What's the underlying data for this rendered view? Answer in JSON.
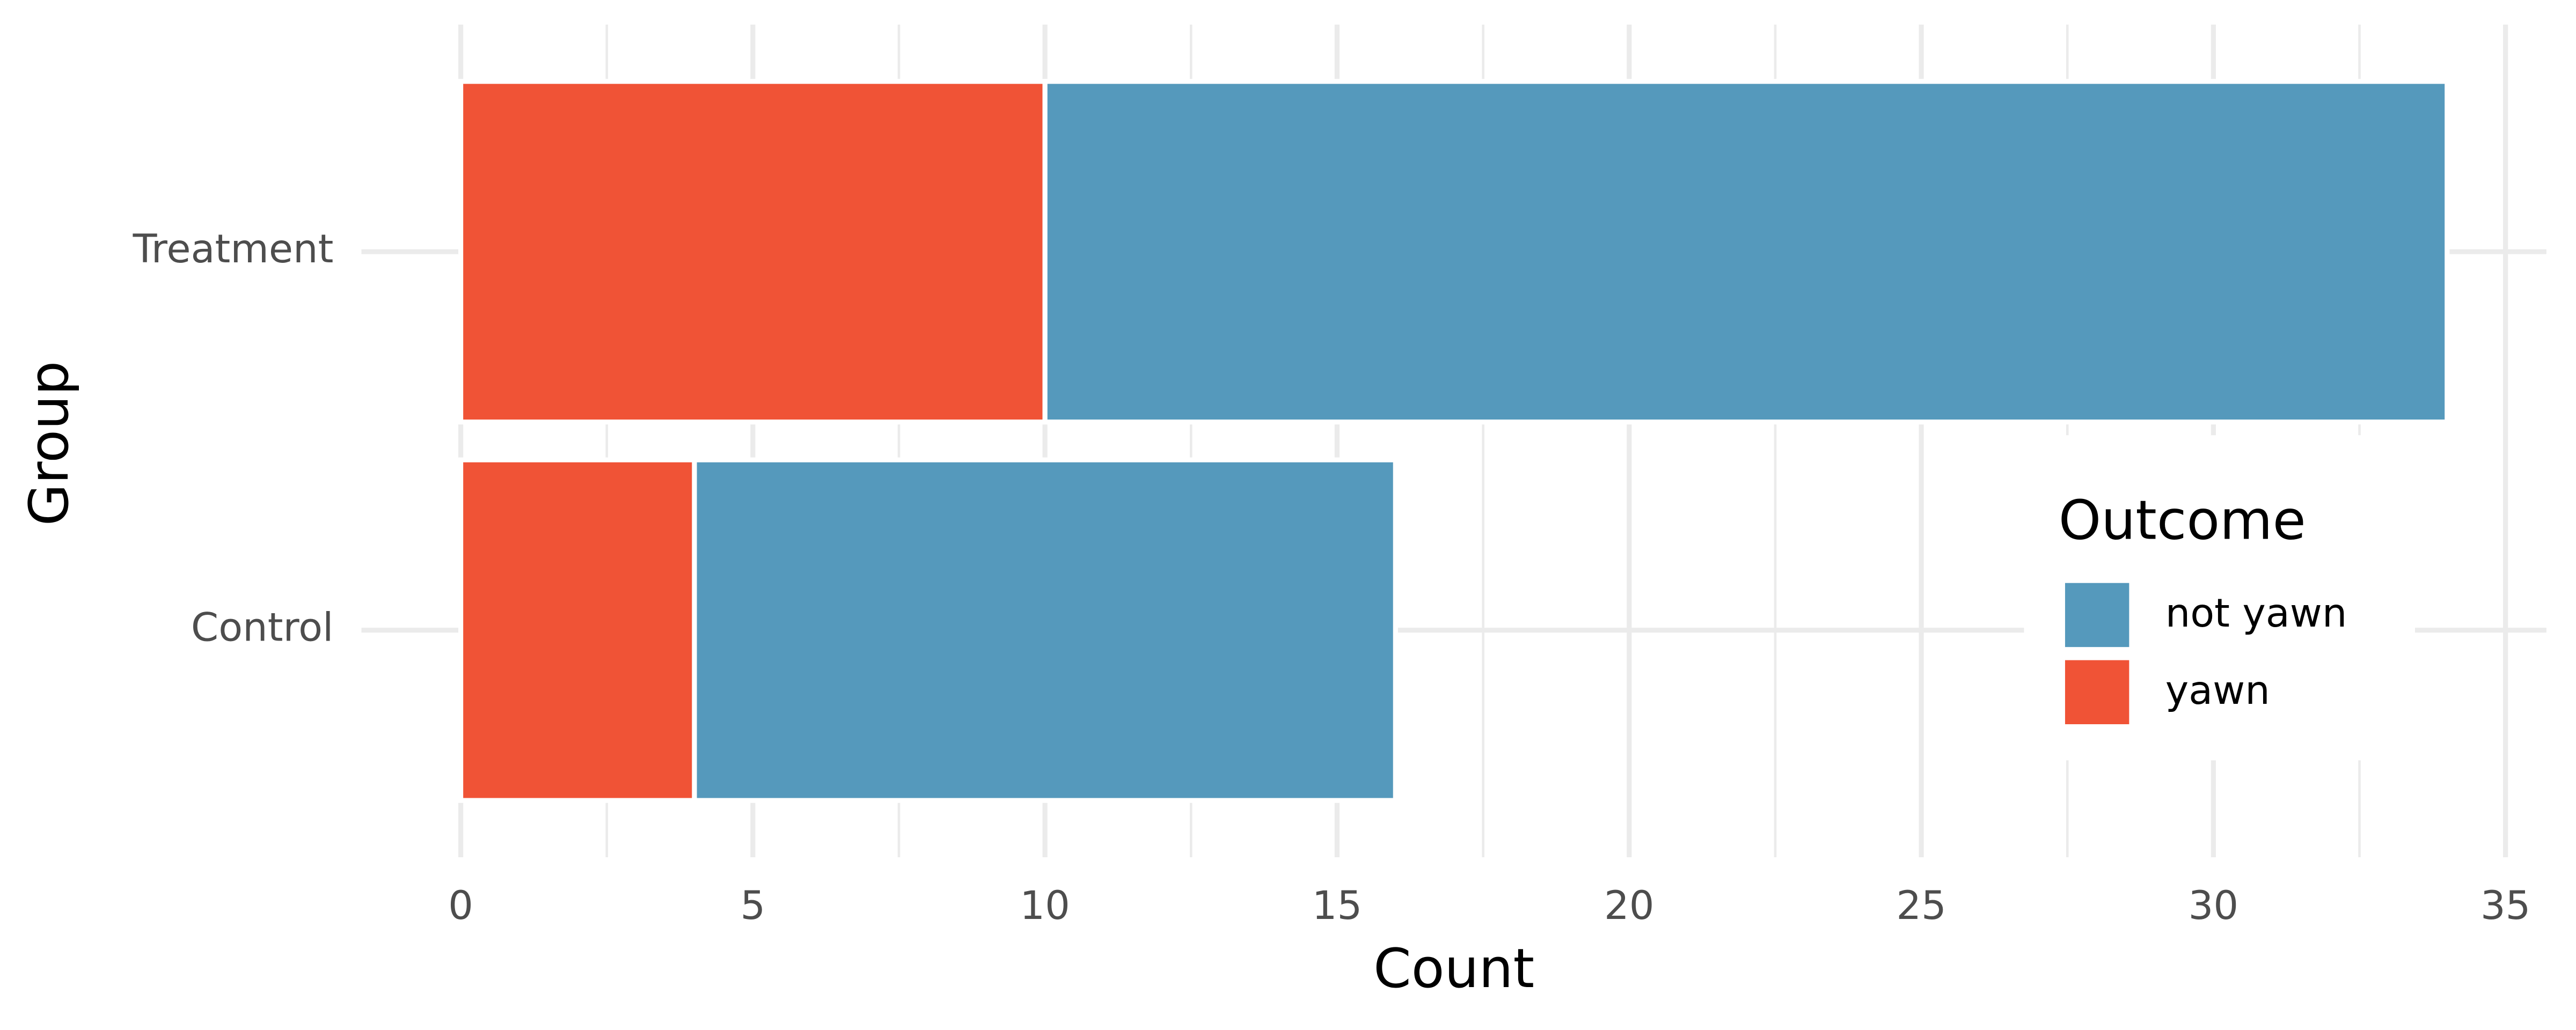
{
  "chart_data": {
    "type": "stacked-barh",
    "x_label": "Count",
    "y_label": "Group",
    "categories": [
      "Control",
      "Treatment"
    ],
    "series": [
      {
        "name": "yawn",
        "color": "#f05336",
        "values": [
          4,
          10
        ]
      },
      {
        "name": "not yawn",
        "color": "#5599bc",
        "values": [
          12,
          24
        ]
      }
    ],
    "xlim": [
      -1.7,
      35.7
    ],
    "xticks": [
      0,
      5,
      10,
      15,
      20,
      25,
      30,
      35
    ],
    "x_minor_grid": [
      2.5,
      7.5,
      12.5,
      17.5,
      22.5,
      27.5,
      32.5
    ],
    "grid": true,
    "legend_title": "Outcome",
    "legend_position": "right"
  }
}
